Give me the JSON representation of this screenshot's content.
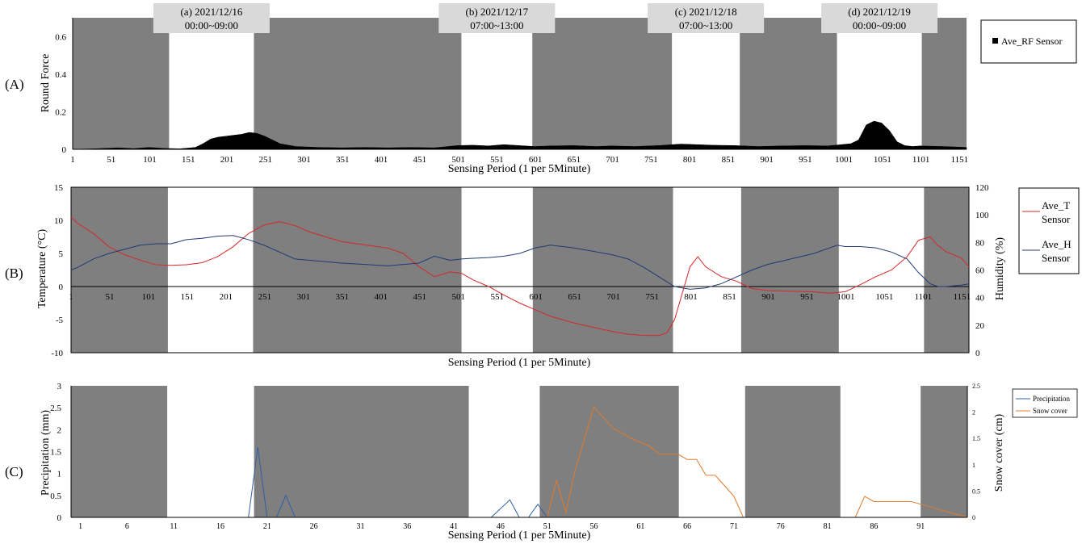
{
  "chart_data": [
    {
      "panel": "(A)",
      "type": "area",
      "ylabel": "Round Force",
      "xlabel": "Sensing Period (1 per 5Minute)",
      "xlim": [
        1,
        1160
      ],
      "ylim": [
        0,
        0.7
      ],
      "yticks": [
        "0",
        "0.2",
        "0.4",
        "0.6"
      ],
      "xticks": [
        "1",
        "51",
        "101",
        "151",
        "201",
        "251",
        "301",
        "351",
        "401",
        "451",
        "501",
        "551",
        "601",
        "651",
        "701",
        "751",
        "801",
        "851",
        "901",
        "951",
        "1001",
        "1051",
        "1101",
        "1151"
      ],
      "legend": [
        "Ave_RF Sensor"
      ],
      "legend_position": "right",
      "shaded_bands": [
        [
          1,
          126
        ],
        [
          236,
          505
        ],
        [
          597,
          778
        ],
        [
          866,
          992
        ],
        [
          1102,
          1160
        ]
      ],
      "period_labels": [
        {
          "line1": "(a) 2021/12/16",
          "line2": "00:00~09:00"
        },
        {
          "line1": "(b) 2021/12/17",
          "line2": "07:00~13:00"
        },
        {
          "line1": "(c) 2021/12/18",
          "line2": "07:00~13:00"
        },
        {
          "line1": "(d) 2021/12/19",
          "line2": "00:00~09:00"
        }
      ],
      "series": [
        {
          "name": "Ave_RF Sensor",
          "x": [
            1,
            30,
            60,
            80,
            100,
            120,
            140,
            160,
            170,
            180,
            190,
            200,
            210,
            220,
            230,
            240,
            250,
            260,
            270,
            290,
            320,
            350,
            380,
            410,
            440,
            470,
            500,
            520,
            540,
            560,
            580,
            600,
            620,
            650,
            680,
            700,
            730,
            760,
            790,
            810,
            830,
            860,
            890,
            920,
            950,
            980,
            1010,
            1020,
            1030,
            1040,
            1050,
            1060,
            1070,
            1080,
            1090,
            1100,
            1130,
            1160
          ],
          "values": [
            0,
            0.003,
            0.008,
            0.004,
            0.01,
            0.005,
            0.003,
            0.01,
            0.03,
            0.055,
            0.065,
            0.07,
            0.075,
            0.08,
            0.09,
            0.085,
            0.07,
            0.05,
            0.03,
            0.015,
            0.01,
            0.008,
            0.01,
            0.008,
            0.01,
            0.008,
            0.02,
            0.022,
            0.018,
            0.025,
            0.02,
            0.015,
            0.018,
            0.02,
            0.015,
            0.018,
            0.015,
            0.02,
            0.028,
            0.025,
            0.022,
            0.02,
            0.015,
            0.018,
            0.02,
            0.018,
            0.03,
            0.05,
            0.13,
            0.15,
            0.14,
            0.1,
            0.04,
            0.02,
            0.015,
            0.018,
            0.015,
            0.01
          ]
        }
      ]
    },
    {
      "panel": "(B)",
      "type": "line",
      "ylabel": "Temperature (°C)",
      "y2label": "Humidity (%)",
      "xlabel": "Sensing Period (1 per 5Minute)",
      "xlim": [
        1,
        1160
      ],
      "ylim": [
        -10,
        15
      ],
      "y2lim": [
        0,
        120
      ],
      "yticks": [
        "-10",
        "-5",
        "0",
        "5",
        "10",
        "15"
      ],
      "y2ticks": [
        "0",
        "20",
        "40",
        "60",
        "80",
        "100",
        "120"
      ],
      "xticks": [
        "1",
        "51",
        "101",
        "151",
        "201",
        "251",
        "301",
        "351",
        "401",
        "451",
        "501",
        "551",
        "601",
        "651",
        "701",
        "751",
        "801",
        "851",
        "901",
        "951",
        "1001",
        "1051",
        "1101",
        "1151"
      ],
      "legend_position": "right",
      "shaded_bands": [
        [
          1,
          126
        ],
        [
          236,
          505
        ],
        [
          597,
          778
        ],
        [
          866,
          992
        ],
        [
          1102,
          1160
        ]
      ],
      "series": [
        {
          "name": "Ave_T Sensor",
          "legend_lines": [
            "Ave_T",
            "Sensor"
          ],
          "color": "#d62728",
          "x": [
            1,
            10,
            30,
            50,
            70,
            90,
            110,
            130,
            150,
            170,
            190,
            210,
            230,
            250,
            270,
            290,
            310,
            330,
            350,
            380,
            410,
            430,
            450,
            470,
            490,
            505,
            520,
            540,
            560,
            580,
            600,
            620,
            650,
            680,
            700,
            720,
            740,
            760,
            770,
            780,
            790,
            800,
            810,
            820,
            840,
            860,
            880,
            900,
            930,
            960,
            980,
            1000,
            1020,
            1040,
            1060,
            1080,
            1095,
            1110,
            1120,
            1130,
            1150,
            1160
          ],
          "values": [
            10.5,
            9.5,
            8,
            6,
            4.8,
            4,
            3.3,
            3.2,
            3.3,
            3.6,
            4.5,
            6,
            8,
            9.3,
            9.8,
            9.2,
            8.2,
            7.5,
            6.8,
            6.3,
            5.8,
            5,
            3,
            1.5,
            2.2,
            2,
            1,
            0,
            -1.3,
            -2.5,
            -3.5,
            -4.5,
            -5.5,
            -6.3,
            -6.8,
            -7.2,
            -7.4,
            -7.4,
            -7,
            -5,
            -1,
            3,
            4.5,
            3,
            1.5,
            0.8,
            -0.3,
            -0.6,
            -0.7,
            -0.8,
            -1,
            -0.8,
            0.3,
            1.5,
            2.5,
            4.5,
            7,
            7.5,
            6.2,
            5.3,
            4.3,
            3
          ]
        },
        {
          "name": "Ave_H Sensor",
          "legend_lines": [
            "Ave_H",
            "Sensor"
          ],
          "color": "#1f3b73",
          "x": [
            1,
            10,
            30,
            50,
            70,
            90,
            110,
            130,
            150,
            170,
            190,
            210,
            230,
            250,
            270,
            290,
            310,
            350,
            380,
            410,
            430,
            450,
            470,
            490,
            505,
            520,
            540,
            560,
            580,
            600,
            620,
            650,
            680,
            700,
            720,
            740,
            760,
            780,
            800,
            820,
            840,
            860,
            880,
            900,
            930,
            960,
            980,
            990,
            1000,
            1020,
            1040,
            1060,
            1080,
            1095,
            1110,
            1120,
            1130,
            1150,
            1160
          ],
          "values": [
            60,
            62,
            68,
            72,
            75,
            78,
            79,
            79,
            82,
            83,
            84.5,
            85,
            82,
            78,
            73,
            68,
            67,
            65,
            64,
            63,
            64,
            65,
            70,
            67,
            68,
            68.5,
            69,
            70,
            72,
            76,
            78,
            76,
            73,
            71,
            68,
            62,
            55,
            48,
            46,
            47,
            50,
            55,
            60,
            64,
            68,
            72,
            76,
            78,
            77,
            77,
            76,
            73,
            68,
            58,
            50,
            48,
            48,
            49,
            50
          ]
        }
      ]
    },
    {
      "panel": "(C)",
      "type": "line",
      "ylabel": "Precipitation (mm)",
      "y2label": "Snow cover (cm)",
      "xlabel": "Sensing Period (1 per 5Minute)",
      "xlim": [
        0,
        96
      ],
      "ylim": [
        0,
        3
      ],
      "y2lim": [
        0,
        2.5
      ],
      "yticks": [
        "0",
        "0.5",
        "1",
        "1.5",
        "2",
        "2.5",
        "3"
      ],
      "y2ticks": [
        "0",
        "0.5",
        "1",
        "1.5",
        "2",
        "2.5"
      ],
      "xticks": [
        "1",
        "6",
        "11",
        "16",
        "21",
        "26",
        "31",
        "36",
        "41",
        "46",
        "51",
        "56",
        "61",
        "66",
        "71",
        "76",
        "81",
        "86",
        "91"
      ],
      "legend_position": "top-right",
      "shaded_bands": [
        [
          0,
          10.3
        ],
        [
          19.6,
          42.6
        ],
        [
          50.2,
          65.1
        ],
        [
          72.2,
          82.4
        ],
        [
          91.0,
          96
        ]
      ],
      "series": [
        {
          "name": "Precipitation",
          "color": "#2e5fa8",
          "x": [
            1,
            19,
            20,
            21,
            22,
            23,
            24,
            45,
            47,
            48,
            49,
            50,
            51,
            52,
            96
          ],
          "values": [
            0,
            0,
            1.6,
            0,
            0,
            0.5,
            0,
            0,
            0.4,
            0,
            0,
            0.3,
            0,
            0,
            0
          ]
        },
        {
          "name": "Snow cover",
          "color": "#e07b2c",
          "x": [
            1,
            50,
            51,
            52,
            53,
            54,
            56,
            58,
            60,
            62,
            63,
            64,
            65,
            66,
            67,
            68,
            69,
            70,
            71,
            72,
            84,
            85,
            86,
            87,
            88,
            89,
            90,
            96
          ],
          "values": [
            0,
            0,
            0,
            0.7,
            0.1,
            0.9,
            2.1,
            1.7,
            1.5,
            1.35,
            1.2,
            1.2,
            1.2,
            1.1,
            1.1,
            0.8,
            0.8,
            0.6,
            0.4,
            0,
            0,
            0.4,
            0.3,
            0.3,
            0.3,
            0.3,
            0.3,
            0
          ]
        }
      ]
    }
  ]
}
